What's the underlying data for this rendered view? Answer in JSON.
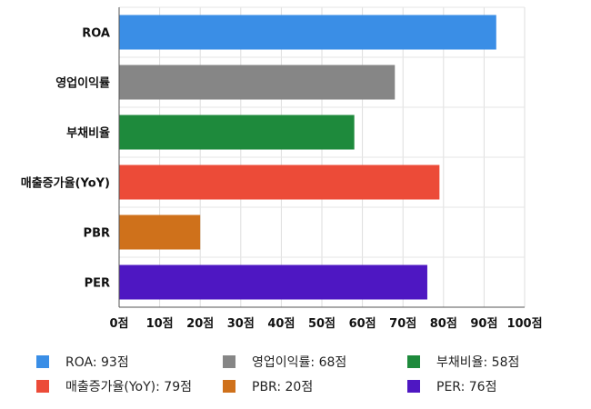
{
  "chart_data": {
    "type": "bar",
    "orientation": "horizontal",
    "categories": [
      "ROA",
      "영업이익률",
      "부채비율",
      "매출증가율(YoY)",
      "PBR",
      "PER"
    ],
    "values": [
      93,
      68,
      58,
      79,
      20,
      76
    ],
    "colors": [
      "#3a8ee6",
      "#868686",
      "#1e8a3c",
      "#ec4b38",
      "#cf711b",
      "#4e17c2"
    ],
    "xlim": [
      0,
      100
    ],
    "x_ticks": [
      0,
      10,
      20,
      30,
      40,
      50,
      60,
      70,
      80,
      90,
      100
    ],
    "x_tick_labels": [
      "0점",
      "10점",
      "20점",
      "30점",
      "40점",
      "50점",
      "60점",
      "70점",
      "80점",
      "90점",
      "100점"
    ],
    "grid": true,
    "legend_placement": "bottom",
    "legend": [
      {
        "label": "ROA: 93점",
        "color": "#3a8ee6"
      },
      {
        "label": "영업이익률: 68점",
        "color": "#868686"
      },
      {
        "label": "부채비율: 58점",
        "color": "#1e8a3c"
      },
      {
        "label": "매출증가율(YoY): 79점",
        "color": "#ec4b38"
      },
      {
        "label": "PBR: 20점",
        "color": "#cf711b"
      },
      {
        "label": "PER: 76점",
        "color": "#4e17c2"
      }
    ]
  }
}
